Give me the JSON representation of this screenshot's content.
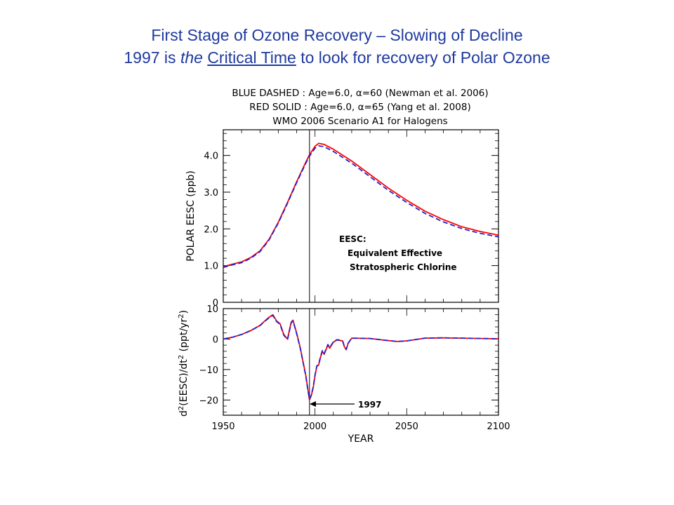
{
  "slide": {
    "title_line1": "First Stage of Ozone Recovery – Slowing of Decline",
    "title_line2": {
      "part1": "1997 is ",
      "italic": "the",
      "part2": " ",
      "underlined": "Critical Time",
      "part3": " to look for recovery of Polar Ozone"
    }
  },
  "chart_data": [
    {
      "type": "line",
      "header": [
        "BLUE DASHED : Age=6.0, α=60 (Newman et al. 2006)",
        "RED SOLID : Age=6.0, α=65 (Yang et al. 2008)",
        "WMO 2006 Scenario A1 for Halogens"
      ],
      "ylabel": "POLAR EESC (ppb)",
      "xlim": [
        1950,
        2100
      ],
      "ylim": [
        0,
        4.7
      ],
      "yticks": [
        "0",
        "1.0",
        "2.0",
        "3.0",
        "4.0"
      ],
      "vertical_line_x": 1997,
      "annotation": [
        "EESC:",
        "Equivalent Effective",
        "Stratospheric Chlorine"
      ],
      "x": [
        1950,
        1955,
        1960,
        1965,
        1970,
        1975,
        1980,
        1985,
        1990,
        1995,
        1997,
        2000,
        2002,
        2005,
        2010,
        2020,
        2030,
        2040,
        2050,
        2060,
        2070,
        2080,
        2090,
        2100
      ],
      "series": [
        {
          "color": "#ff0000",
          "style": "solid",
          "values": [
            0.97,
            1.04,
            1.1,
            1.22,
            1.4,
            1.72,
            2.18,
            2.72,
            3.28,
            3.82,
            4.02,
            4.25,
            4.33,
            4.3,
            4.17,
            3.85,
            3.48,
            3.11,
            2.78,
            2.48,
            2.25,
            2.06,
            1.93,
            1.83
          ]
        },
        {
          "color": "#2222cc",
          "style": "dashed",
          "values": [
            0.95,
            1.02,
            1.08,
            1.2,
            1.38,
            1.7,
            2.16,
            2.7,
            3.26,
            3.79,
            3.98,
            4.2,
            4.26,
            4.24,
            4.11,
            3.79,
            3.42,
            3.05,
            2.72,
            2.42,
            2.19,
            2.01,
            1.88,
            1.78
          ]
        }
      ]
    },
    {
      "type": "line",
      "xlabel": "YEAR",
      "ylabel": "d²(EESC)/dt² (ppt/yr²)",
      "xlim": [
        1950,
        2100
      ],
      "ylim": [
        -25,
        10
      ],
      "xticks": [
        "1950",
        "2000",
        "2050",
        "2100"
      ],
      "yticks": [
        "10",
        "0",
        "−10",
        "−20"
      ],
      "vertical_line_x": 1997,
      "annotation": "1997",
      "x": [
        1950,
        1955,
        1960,
        1965,
        1970,
        1972,
        1975,
        1977,
        1979,
        1981,
        1983,
        1985,
        1987,
        1988,
        1990,
        1992,
        1994,
        1995,
        1996,
        1997,
        1998,
        1999,
        2000,
        2001,
        2002,
        2003,
        2004,
        2005,
        2006,
        2007,
        2008,
        2010,
        2012,
        2015,
        2016,
        2017,
        2018,
        2020,
        2030,
        2040,
        2045,
        2050,
        2060,
        2070,
        2080,
        2090,
        2100
      ],
      "series": [
        {
          "color": "#ff0000",
          "style": "solid",
          "values": [
            0,
            0.6,
            1.5,
            2.8,
            4.5,
            5.6,
            7.2,
            8.0,
            6.0,
            5.0,
            1.5,
            0.0,
            5.5,
            6.2,
            2.0,
            -3.0,
            -9.0,
            -12.0,
            -16.0,
            -20.0,
            -18.5,
            -16.0,
            -12.0,
            -9.0,
            -8.5,
            -6.0,
            -4.0,
            -5.0,
            -3.5,
            -2.0,
            -3.0,
            -1.0,
            -0.3,
            -0.6,
            -2.5,
            -3.5,
            -1.5,
            0.3,
            0.2,
            -0.5,
            -0.8,
            -0.6,
            0.3,
            0.4,
            0.3,
            0.2,
            0.1
          ]
        },
        {
          "color": "#2222cc",
          "style": "dashed",
          "values": [
            0,
            0.6,
            1.5,
            2.8,
            4.4,
            5.5,
            7.0,
            7.8,
            5.8,
            4.8,
            1.3,
            -0.2,
            5.3,
            6.0,
            1.8,
            -3.2,
            -9.2,
            -12.2,
            -16.2,
            -19.8,
            -18.3,
            -15.8,
            -11.8,
            -8.8,
            -8.3,
            -5.8,
            -3.8,
            -4.8,
            -3.3,
            -1.8,
            -2.8,
            -0.9,
            -0.2,
            -0.5,
            -2.4,
            -3.4,
            -1.4,
            0.3,
            0.2,
            -0.5,
            -0.8,
            -0.6,
            0.3,
            0.4,
            0.3,
            0.2,
            0.1
          ]
        }
      ]
    }
  ]
}
